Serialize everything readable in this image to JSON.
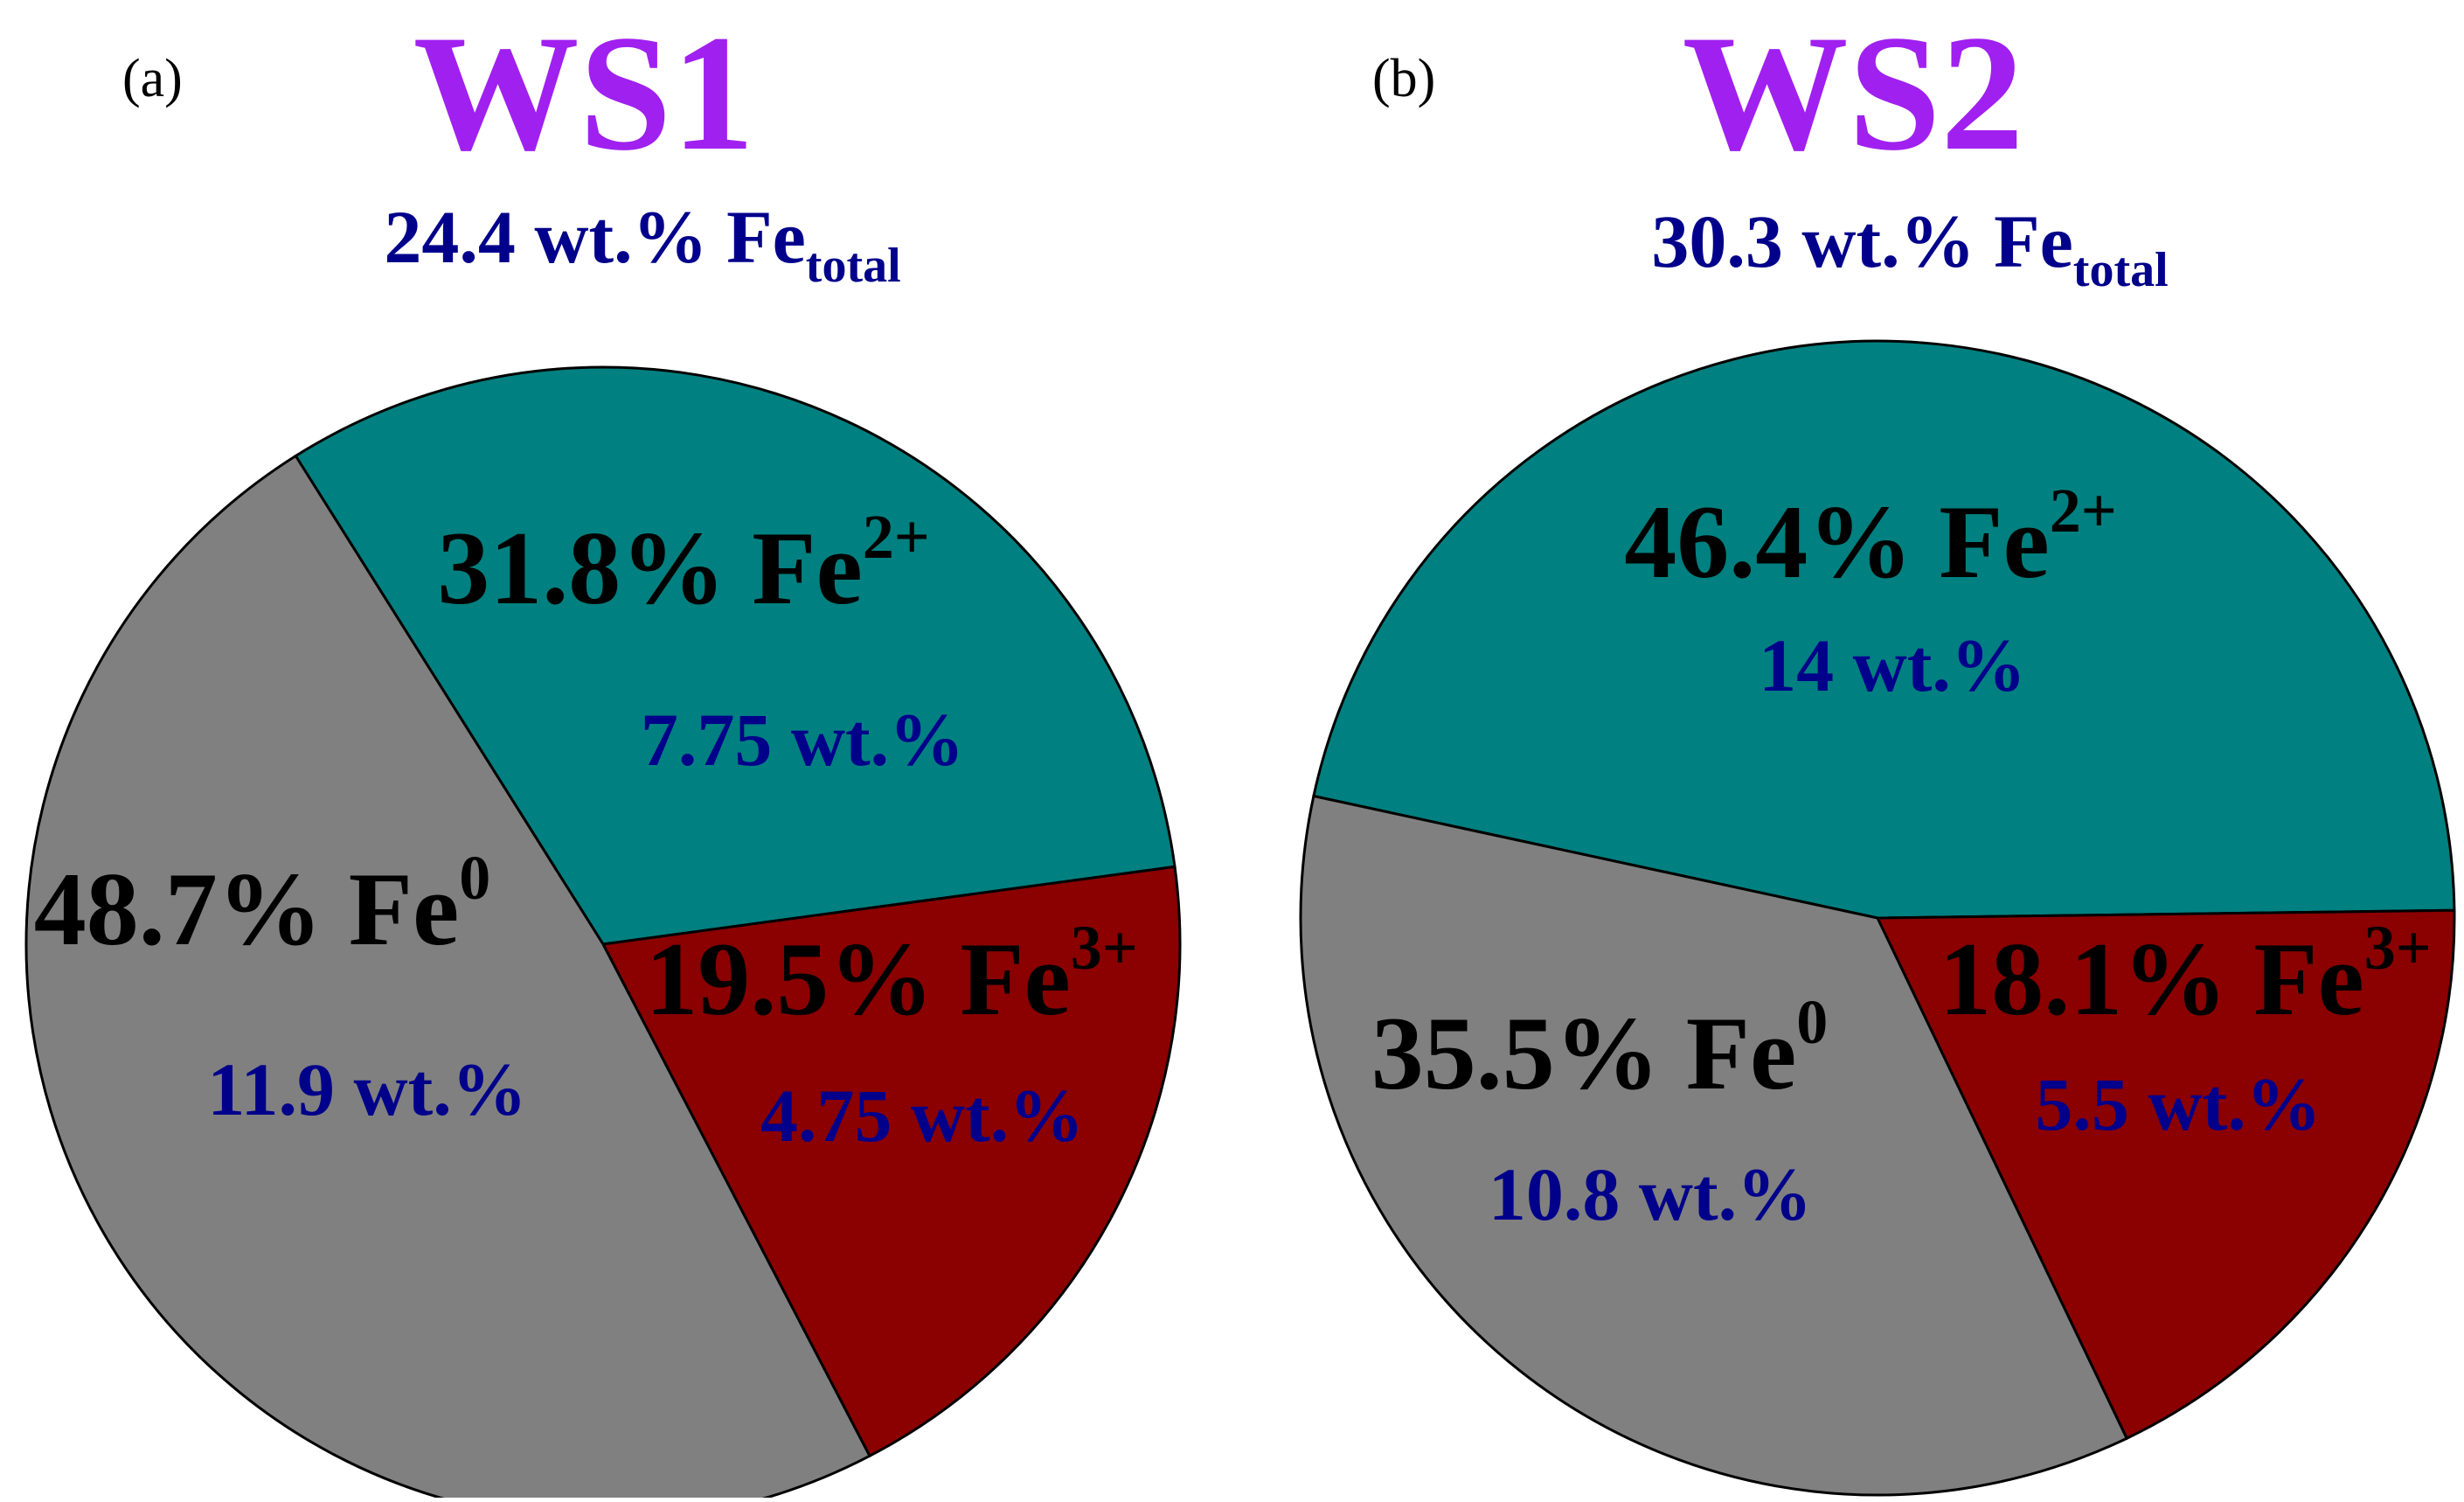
{
  "colors": {
    "title": "#A020F0",
    "subtitle": "#00008B",
    "label": "#000000",
    "wt_label": "#00008B",
    "outline": "#000000",
    "Fe2+": "#008080",
    "Fe3+": "#8B0000",
    "Fe0": "#808080"
  },
  "chart_data": [
    {
      "type": "pie",
      "panel": "(a)",
      "title": "WS1",
      "subtitle": {
        "prefix": "24.4 wt.% Fe",
        "subscript": "total"
      },
      "slices": [
        {
          "species": "Fe2+",
          "percent": 31.8,
          "label": "31.8% Fe",
          "sup": "2+",
          "wt": "7.75 wt.%"
        },
        {
          "species": "Fe3+",
          "percent": 19.5,
          "label": "19.5% Fe",
          "sup": "3+",
          "wt": "4.75 wt.%"
        },
        {
          "species": "Fe0",
          "percent": 48.7,
          "label": "48.7% Fe",
          "sup": "0",
          "wt": "11.9 wt.%"
        }
      ]
    },
    {
      "type": "pie",
      "panel": "(b)",
      "title": "WS2",
      "subtitle": {
        "prefix": "30.3 wt.% Fe",
        "subscript": "total"
      },
      "slices": [
        {
          "species": "Fe2+",
          "percent": 46.4,
          "label": "46.4% Fe",
          "sup": "2+",
          "wt": "14 wt.%"
        },
        {
          "species": "Fe3+",
          "percent": 18.1,
          "label": "18.1% Fe",
          "sup": "3+",
          "wt": "5.5 wt.%"
        },
        {
          "species": "Fe0",
          "percent": 35.5,
          "label": "35.5% Fe",
          "sup": "0",
          "wt": "10.8 wt.%"
        }
      ]
    }
  ]
}
